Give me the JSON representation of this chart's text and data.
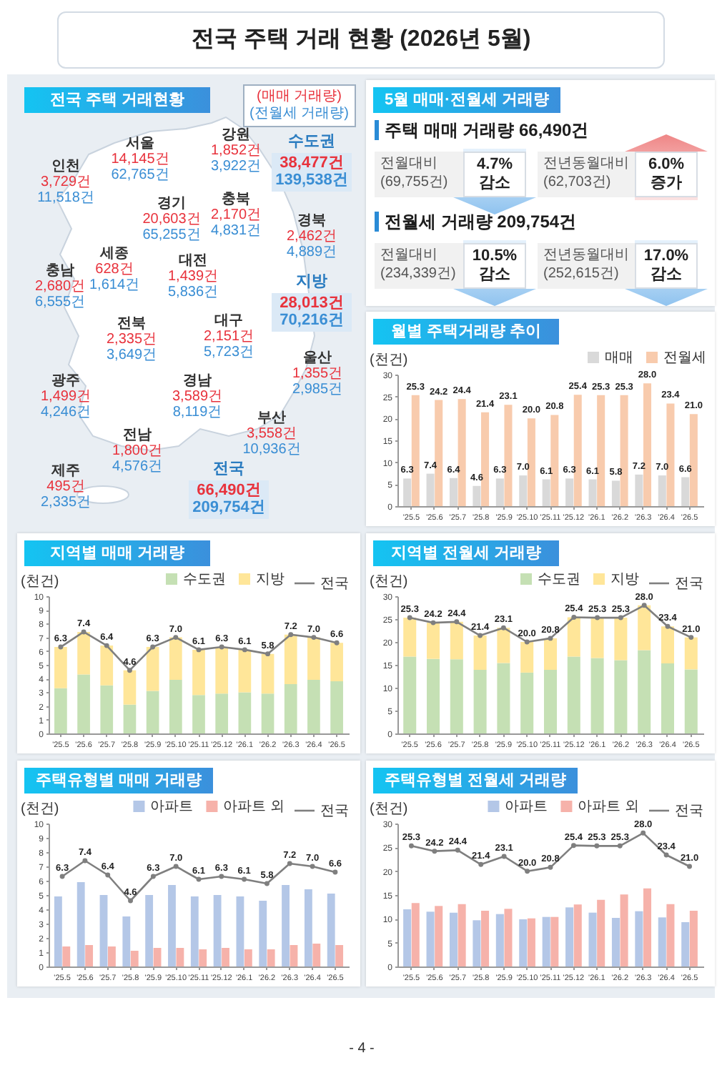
{
  "chart_data": [
    {
      "type": "other",
      "title": "전국 주택 거래 현황 (2026년 5월)",
      "annotations": [
        "- 4 -"
      ]
    },
    {
      "type": "other",
      "title": "전국 주택 거래현황",
      "series": [
        {
          "name": "(매매 거래량)",
          "color": "#e8323c"
        },
        {
          "name": "(전월세 거래량)",
          "color": "#3a8ed4"
        }
      ],
      "annotations": [
        "서울",
        "14,145건",
        "62,765건",
        "인천",
        "3,729건",
        "11,518건",
        "경기",
        "20,603건",
        "65,255건",
        "강원",
        "1,852건",
        "3,922건",
        "충북",
        "2,170건",
        "4,831건",
        "세종",
        "628건",
        "1,614건",
        "충남",
        "2,680건",
        "6,555건",
        "대전",
        "1,439건",
        "5,836건",
        "경북",
        "2,462건",
        "4,889건",
        "대구",
        "2,151건",
        "5,723건",
        "전북",
        "2,335건",
        "3,649건",
        "울산",
        "1,355건",
        "2,985건",
        "경남",
        "3,589건",
        "8,119건",
        "광주",
        "1,499건",
        "4,246건",
        "부산",
        "3,558건",
        "10,936건",
        "전남",
        "1,800건",
        "4,576건",
        "제주",
        "495건",
        "2,335건",
        "수도권",
        "38,477건",
        "139,538건",
        "지방",
        "28,013건",
        "70,216건",
        "전국",
        "66,490건",
        "209,754건"
      ]
    },
    {
      "type": "other",
      "title": "5월 매매·전월세 거래량",
      "annotations": [
        "주택 매매 거래량 66,490건",
        "전월대비",
        "(69,755건)",
        "4.7%",
        "감소",
        "전년동월대비",
        "(62,703건)",
        "6.0%",
        "증가",
        "전월세 거래량 209,754건",
        "전월대비",
        "(234,339건)",
        "10.5%",
        "감소",
        "전년동월대비",
        "(252,615건)",
        "17.0%",
        "감소"
      ]
    },
    {
      "type": "bar",
      "title": "월별 주택거래량 추이",
      "ylabel": "(천건)",
      "legend": "top right",
      "categories": [
        "'25.5",
        "'25.6",
        "'25.7",
        "'25.8",
        "'25.9",
        "'25.10",
        "'25.11",
        "'25.12",
        "'26.1",
        "'26.2",
        "'26.3",
        "'26.4",
        "'26.5"
      ],
      "ylim": [
        0,
        30
      ],
      "yticks": [
        0,
        5,
        10,
        15,
        20,
        25,
        30
      ],
      "series": [
        {
          "name": "매매",
          "color": "#d9d9d9",
          "values": [
            6.3,
            7.4,
            6.4,
            4.6,
            6.3,
            7.0,
            6.1,
            6.3,
            6.1,
            5.8,
            7.2,
            7.0,
            6.6
          ],
          "value_labels": [
            "6.3",
            "7.4",
            "6.4",
            "4.6",
            "6.3",
            "7.0",
            "6.1",
            "6.3",
            "6.1",
            "5.8",
            "7.2",
            "7.0",
            "6.6"
          ]
        },
        {
          "name": "전월세",
          "color": "#f8cbad",
          "values": [
            25.3,
            24.2,
            24.4,
            21.4,
            23.1,
            20.0,
            20.8,
            25.4,
            25.3,
            25.3,
            28.0,
            23.4,
            21.0
          ],
          "value_labels": [
            "25.3",
            "24.2",
            "24.4",
            "21.4",
            "23.1",
            "20.0",
            "20.8",
            "25.4",
            "25.3",
            "25.3",
            "28.0",
            "23.4",
            "21.0"
          ]
        }
      ]
    },
    {
      "type": "bar",
      "stacked": true,
      "title": "지역별 매매 거래량",
      "ylabel": "(천건)",
      "legend": "top right",
      "marker": "circle",
      "categories": [
        "'25.5",
        "'25.6",
        "'25.7",
        "'25.8",
        "'25.9",
        "'25.10",
        "'25.11",
        "'25.12",
        "'26.1",
        "'26.2",
        "'26.3",
        "'26.4",
        "'26.5"
      ],
      "ylim": [
        0,
        10
      ],
      "yticks": [
        0,
        1,
        2,
        3,
        4,
        5,
        6,
        7,
        8,
        9,
        10
      ],
      "series": [
        {
          "name": "수도권",
          "color": "#c5e0b4",
          "values": [
            3.3,
            4.3,
            3.5,
            2.1,
            3.1,
            3.9,
            2.8,
            2.9,
            3.0,
            2.9,
            3.6,
            3.9,
            3.8
          ]
        },
        {
          "name": "지방",
          "color": "#ffe699",
          "values": [
            3.0,
            3.1,
            2.9,
            2.5,
            3.2,
            3.1,
            3.3,
            3.4,
            3.1,
            2.9,
            3.6,
            3.1,
            2.8
          ]
        },
        {
          "name": "전국",
          "type": "line",
          "color": "#7f7f7f",
          "values": [
            6.3,
            7.4,
            6.4,
            4.6,
            6.3,
            7.0,
            6.1,
            6.3,
            6.1,
            5.8,
            7.2,
            7.0,
            6.6
          ],
          "value_labels": [
            "6.3",
            "7.4",
            "6.4",
            "4.6",
            "6.3",
            "7.0",
            "6.1",
            "6.3",
            "6.1",
            "5.8",
            "7.2",
            "7.0",
            "6.6"
          ]
        }
      ]
    },
    {
      "type": "bar",
      "stacked": true,
      "title": "지역별 전월세 거래량",
      "ylabel": "(천건)",
      "legend": "top right",
      "marker": "circle",
      "categories": [
        "'25.5",
        "'25.6",
        "'25.7",
        "'25.8",
        "'25.9",
        "'25.10",
        "'25.11",
        "'25.12",
        "'26.1",
        "'26.2",
        "'26.3",
        "'26.4",
        "'26.5"
      ],
      "ylim": [
        0,
        30
      ],
      "yticks": [
        0,
        5,
        10,
        15,
        20,
        25,
        30
      ],
      "series": [
        {
          "name": "수도권",
          "color": "#c5e0b4",
          "values": [
            16.8,
            16.3,
            16.2,
            13.9,
            15.4,
            13.3,
            13.9,
            16.8,
            16.5,
            16.0,
            18.2,
            15.3,
            14.0
          ]
        },
        {
          "name": "지방",
          "color": "#ffe699",
          "values": [
            8.5,
            7.9,
            8.2,
            7.5,
            7.7,
            6.7,
            6.9,
            8.6,
            8.8,
            9.3,
            9.8,
            8.1,
            7.0
          ]
        },
        {
          "name": "전국",
          "type": "line",
          "color": "#7f7f7f",
          "values": [
            25.3,
            24.2,
            24.4,
            21.4,
            23.1,
            20.0,
            20.8,
            25.4,
            25.3,
            25.3,
            28.0,
            23.4,
            21.0
          ],
          "value_labels": [
            "25.3",
            "24.2",
            "24.4",
            "21.4",
            "23.1",
            "20.0",
            "20.8",
            "25.4",
            "25.3",
            "25.3",
            "28.0",
            "23.4",
            "21.0"
          ]
        }
      ]
    },
    {
      "type": "bar",
      "title": "주택유형별 매매 거래량",
      "ylabel": "(천건)",
      "legend": "top right",
      "marker": "circle",
      "categories": [
        "'25.5",
        "'25.6",
        "'25.7",
        "'25.8",
        "'25.9",
        "'25.10",
        "'25.11",
        "'25.12",
        "'26.1",
        "'26.2",
        "'26.3",
        "'26.4",
        "'26.5"
      ],
      "ylim": [
        0,
        10
      ],
      "yticks": [
        0,
        1,
        2,
        3,
        4,
        5,
        6,
        7,
        8,
        9,
        10
      ],
      "series": [
        {
          "name": "아파트",
          "color": "#b4c7e7",
          "values": [
            4.9,
            5.9,
            5.0,
            3.5,
            5.0,
            5.7,
            4.9,
            5.0,
            4.9,
            4.6,
            5.7,
            5.4,
            5.1
          ]
        },
        {
          "name": "아파트 외",
          "color": "#f6b2aa",
          "values": [
            1.4,
            1.5,
            1.4,
            1.1,
            1.3,
            1.3,
            1.2,
            1.3,
            1.2,
            1.2,
            1.5,
            1.6,
            1.5
          ]
        },
        {
          "name": "전국",
          "type": "line",
          "color": "#7f7f7f",
          "values": [
            6.3,
            7.4,
            6.4,
            4.6,
            6.3,
            7.0,
            6.1,
            6.3,
            6.1,
            5.8,
            7.2,
            7.0,
            6.6
          ],
          "value_labels": [
            "6.3",
            "7.4",
            "6.4",
            "4.6",
            "6.3",
            "7.0",
            "6.1",
            "6.3",
            "6.1",
            "5.8",
            "7.2",
            "7.0",
            "6.6"
          ]
        }
      ]
    },
    {
      "type": "bar",
      "title": "주택유형별 전월세 거래량",
      "ylabel": "(천건)",
      "legend": "top right",
      "marker": "circle",
      "categories": [
        "'25.5",
        "'25.6",
        "'25.7",
        "'25.8",
        "'25.9",
        "'25.10",
        "'25.11",
        "'25.12",
        "'26.1",
        "'26.2",
        "'26.3",
        "'26.4",
        "'26.5"
      ],
      "ylim": [
        0,
        30
      ],
      "yticks": [
        0,
        5,
        10,
        15,
        20,
        25,
        30
      ],
      "series": [
        {
          "name": "아파트",
          "color": "#b4c7e7",
          "values": [
            12.0,
            11.5,
            11.3,
            9.7,
            11.0,
            9.9,
            10.4,
            12.4,
            11.3,
            10.2,
            11.6,
            10.3,
            9.3
          ]
        },
        {
          "name": "아파트 외",
          "color": "#f6b2aa",
          "values": [
            13.3,
            12.7,
            13.1,
            11.7,
            12.1,
            10.1,
            10.4,
            13.0,
            14.0,
            15.1,
            16.4,
            13.1,
            11.7
          ]
        },
        {
          "name": "전국",
          "type": "line",
          "color": "#7f7f7f",
          "values": [
            25.3,
            24.2,
            24.4,
            21.4,
            23.1,
            20.0,
            20.8,
            25.4,
            25.3,
            25.3,
            28.0,
            23.4,
            21.0
          ],
          "value_labels": [
            "25.3",
            "24.2",
            "24.4",
            "21.4",
            "23.1",
            "20.0",
            "20.8",
            "25.4",
            "25.3",
            "25.3",
            "28.0",
            "23.4",
            "21.0"
          ]
        }
      ]
    }
  ]
}
